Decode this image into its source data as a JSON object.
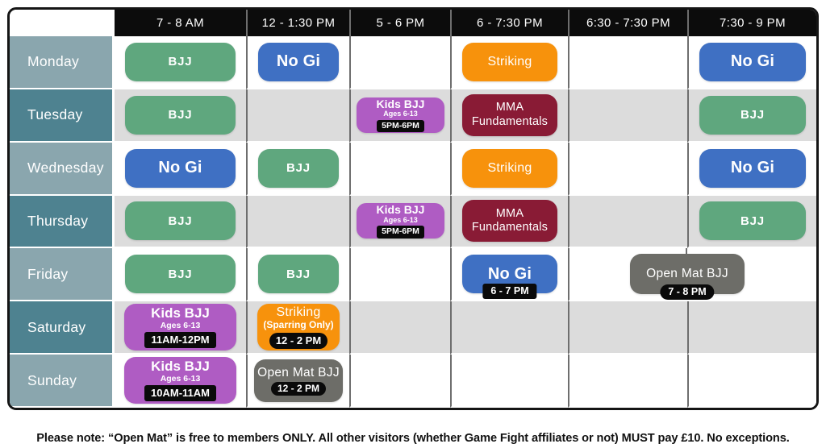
{
  "timetable": {
    "time_slots": [
      "7 - 8 AM",
      "12 - 1:30 PM",
      "5 - 6 PM",
      "6 - 7:30 PM",
      "6:30 - 7:30 PM",
      "7:30 - 9 PM"
    ],
    "schedule": [
      {
        "day": "Monday",
        "entries": [
          {
            "col": 0,
            "type": "bjj",
            "label": "BJJ"
          },
          {
            "col": 1,
            "type": "nogi",
            "label": "No Gi"
          },
          {
            "col": 3,
            "type": "striking",
            "label": "Striking"
          },
          {
            "col": 5,
            "type": "nogi",
            "label": "No Gi"
          }
        ]
      },
      {
        "day": "Tuesday",
        "entries": [
          {
            "col": 0,
            "type": "bjj",
            "label": "BJJ"
          },
          {
            "col": 2,
            "type": "kids",
            "size": "sm",
            "label": "Kids BJJ",
            "sub": "Ages 6-13",
            "badge": "5PM-6PM",
            "badge_shape": "rect",
            "badge_placement": "inline"
          },
          {
            "col": 3,
            "type": "mma",
            "label": "MMA",
            "label2": "Fundamentals"
          },
          {
            "col": 5,
            "type": "bjj",
            "label": "BJJ"
          }
        ]
      },
      {
        "day": "Wednesday",
        "entries": [
          {
            "col": 0,
            "type": "nogi",
            "label": "No Gi"
          },
          {
            "col": 1,
            "type": "bjj",
            "label": "BJJ"
          },
          {
            "col": 3,
            "type": "striking",
            "label": "Striking"
          },
          {
            "col": 5,
            "type": "nogi",
            "label": "No Gi"
          }
        ]
      },
      {
        "day": "Thursday",
        "entries": [
          {
            "col": 0,
            "type": "bjj",
            "label": "BJJ"
          },
          {
            "col": 2,
            "type": "kids",
            "size": "sm",
            "label": "Kids BJJ",
            "sub": "Ages 6-13",
            "badge": "5PM-6PM",
            "badge_shape": "rect",
            "badge_placement": "inline"
          },
          {
            "col": 3,
            "type": "mma",
            "label": "MMA",
            "label2": "Fundamentals"
          },
          {
            "col": 5,
            "type": "bjj",
            "label": "BJJ"
          }
        ]
      },
      {
        "day": "Friday",
        "entries": [
          {
            "col": 0,
            "type": "bjj",
            "label": "BJJ"
          },
          {
            "col": 1,
            "type": "bjj",
            "label": "BJJ"
          },
          {
            "col": 3,
            "type": "nogi",
            "label": "No Gi",
            "badge": "6 - 7 PM",
            "badge_shape": "rect",
            "badge_placement": "hang"
          },
          {
            "col": 4,
            "span": 2,
            "type": "openmat",
            "label": "Open Mat BJJ",
            "badge": "7 - 8 PM",
            "badge_shape": "pill",
            "badge_placement": "hang"
          }
        ]
      },
      {
        "day": "Saturday",
        "entries": [
          {
            "col": 0,
            "type": "kids",
            "size": "lg",
            "label": "Kids BJJ",
            "sub": "Ages 6-13",
            "badge": "11AM-12PM",
            "badge_shape": "rect",
            "badge_placement": "inline"
          },
          {
            "col": 1,
            "type": "striking",
            "size": "lg",
            "label": "Striking",
            "sub": "(Sparring Only)",
            "badge": "12 - 2 PM",
            "badge_shape": "pill",
            "badge_placement": "inline"
          }
        ]
      },
      {
        "day": "Sunday",
        "entries": [
          {
            "col": 0,
            "type": "kids",
            "size": "lg",
            "label": "Kids BJJ",
            "sub": "Ages 6-13",
            "badge": "10AM-11AM",
            "badge_shape": "rect",
            "badge_placement": "inline"
          },
          {
            "col": 1,
            "type": "openmat",
            "label": "Open Mat BJJ",
            "badge": "12 - 2 PM",
            "badge_shape": "pill",
            "badge_placement": "inline"
          }
        ]
      }
    ],
    "note": "Please note: “Open Mat” is free to members ONLY. All other visitors (whether Game Fight affiliates or not) MUST pay £10. No exceptions.",
    "colors": {
      "header_bg": "#0c0c0c",
      "day_light": "#8aa6ae",
      "day_dark": "#4e8290",
      "row_white": "#ffffff",
      "row_gray": "#dcdcdc",
      "bjj": "#5fa77e",
      "nogi": "#3f70c3",
      "striking": "#f7920c",
      "mma": "#891b35",
      "kids": "#af5cc3",
      "openmat": "#6d6d68",
      "badge_bg": "#0a0a0a",
      "separator": "#6e6e6e"
    }
  }
}
